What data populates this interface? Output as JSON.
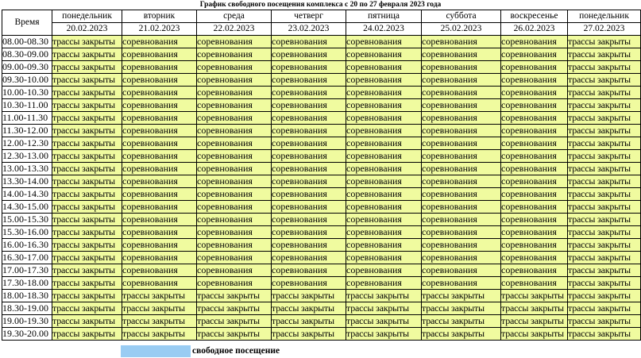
{
  "title": "График свободного посещения комплекса с 20 по 27 февраля 2023 года",
  "header": {
    "time_label": "Время",
    "days": [
      {
        "day": "понедельник",
        "date": "20.02.2023"
      },
      {
        "day": "вторник",
        "date": "21.02.2023"
      },
      {
        "day": "среда",
        "date": "22.02.2023"
      },
      {
        "day": "четверг",
        "date": "23.02.2023"
      },
      {
        "day": "пятница",
        "date": "24.02.2023"
      },
      {
        "day": "суббота",
        "date": "25.02.2023"
      },
      {
        "day": "воскресенье",
        "date": "26.02.2023"
      },
      {
        "day": "понедельник",
        "date": "27.02.2023"
      }
    ]
  },
  "rows": [
    {
      "time": "08.00-08.30",
      "cells": [
        "трассы закрыты",
        "соревнования",
        "соревнования",
        "соревнования",
        "соревнования",
        "соревнования",
        "соревнования",
        "трассы закрыты"
      ]
    },
    {
      "time": "08.30-09.00",
      "cells": [
        "трассы закрыты",
        "соревнования",
        "соревнования",
        "соревнования",
        "соревнования",
        "соревнования",
        "соревнования",
        "трассы закрыты"
      ]
    },
    {
      "time": "09.00-09.30",
      "cells": [
        "трассы закрыты",
        "соревнования",
        "соревнования",
        "соревнования",
        "соревнования",
        "соревнования",
        "соревнования",
        "трассы закрыты"
      ]
    },
    {
      "time": "09.30-10.00",
      "cells": [
        "трассы закрыты",
        "соревнования",
        "соревнования",
        "соревнования",
        "соревнования",
        "соревнования",
        "соревнования",
        "трассы закрыты"
      ]
    },
    {
      "time": "10.00-10.30",
      "cells": [
        "трассы закрыты",
        "соревнования",
        "соревнования",
        "соревнования",
        "соревнования",
        "соревнования",
        "соревнования",
        "трассы закрыты"
      ]
    },
    {
      "time": "10.30-11.00",
      "cells": [
        "трассы закрыты",
        "соревнования",
        "соревнования",
        "соревнования",
        "соревнования",
        "соревнования",
        "соревнования",
        "трассы закрыты"
      ]
    },
    {
      "time": "11.00-11.30",
      "cells": [
        "трассы закрыты",
        "соревнования",
        "соревнования",
        "соревнования",
        "соревнования",
        "соревнования",
        "соревнования",
        "трассы закрыты"
      ]
    },
    {
      "time": "11.30-12.00",
      "cells": [
        "трассы закрыты",
        "соревнования",
        "соревнования",
        "соревнования",
        "соревнования",
        "соревнования",
        "соревнования",
        "трассы закрыты"
      ]
    },
    {
      "time": "12.00-12.30",
      "cells": [
        "трассы закрыты",
        "соревнования",
        "соревнования",
        "соревнования",
        "соревнования",
        "соревнования",
        "соревнования",
        "трассы закрыты"
      ]
    },
    {
      "time": "12.30-13.00",
      "cells": [
        "трассы закрыты",
        "соревнования",
        "соревнования",
        "соревнования",
        "соревнования",
        "соревнования",
        "соревнования",
        "трассы закрыты"
      ]
    },
    {
      "time": "13.00-13.30",
      "cells": [
        "трассы закрыты",
        "соревнования",
        "соревнования",
        "соревнования",
        "соревнования",
        "соревнования",
        "соревнования",
        "трассы закрыты"
      ]
    },
    {
      "time": "13.30-14.00",
      "cells": [
        "трассы закрыты",
        "соревнования",
        "соревнования",
        "соревнования",
        "соревнования",
        "соревнования",
        "соревнования",
        "трассы закрыты"
      ]
    },
    {
      "time": "14.00-14.30",
      "cells": [
        "трассы закрыты",
        "соревнования",
        "соревнования",
        "соревнования",
        "соревнования",
        "соревнования",
        "соревнования",
        "трассы закрыты"
      ]
    },
    {
      "time": "14.30-15.00",
      "cells": [
        "трассы закрыты",
        "соревнования",
        "соревнования",
        "соревнования",
        "соревнования",
        "соревнования",
        "соревнования",
        "трассы закрыты"
      ]
    },
    {
      "time": "15.00-15.30",
      "cells": [
        "трассы закрыты",
        "соревнования",
        "соревнования",
        "соревнования",
        "соревнования",
        "соревнования",
        "соревнования",
        "трассы закрыты"
      ]
    },
    {
      "time": "15.30-16.00",
      "cells": [
        "трассы закрыты",
        "соревнования",
        "соревнования",
        "соревнования",
        "соревнования",
        "соревнования",
        "соревнования",
        "трассы закрыты"
      ]
    },
    {
      "time": "16.00-16.30",
      "cells": [
        "трассы закрыты",
        "соревнования",
        "соревнования",
        "соревнования",
        "соревнования",
        "соревнования",
        "соревнования",
        "трассы закрыты"
      ]
    },
    {
      "time": "16.30-17.00",
      "cells": [
        "трассы закрыты",
        "соревнования",
        "соревнования",
        "соревнования",
        "соревнования",
        "соревнования",
        "соревнования",
        "трассы закрыты"
      ]
    },
    {
      "time": "17.00-17.30",
      "cells": [
        "трассы закрыты",
        "соревнования",
        "соревнования",
        "соревнования",
        "соревнования",
        "соревнования",
        "соревнования",
        "трассы закрыты"
      ]
    },
    {
      "time": "17.30-18.00",
      "cells": [
        "трассы закрыты",
        "соревнования",
        "соревнования",
        "соревнования",
        "соревнования",
        "соревнования",
        "соревнования",
        "трассы закрыты"
      ]
    },
    {
      "time": "18.00-18.30",
      "cells": [
        "трассы закрыты",
        "трассы закрыты",
        "трассы закрыты",
        "трассы закрыты",
        "трассы закрыты",
        "трассы закрыты",
        "трассы закрыты",
        "трассы закрыты"
      ]
    },
    {
      "time": "18.30-19.00",
      "cells": [
        "трассы закрыты",
        "трассы закрыты",
        "трассы закрыты",
        "трассы закрыты",
        "трассы закрыты",
        "трассы закрыты",
        "трассы закрыты",
        "трассы закрыты"
      ]
    },
    {
      "time": "19.00-19.30",
      "cells": [
        "трассы закрыты",
        "трассы закрыты",
        "трассы закрыты",
        "трассы закрыты",
        "трассы закрыты",
        "трассы закрыты",
        "трассы закрыты",
        "трассы закрыты"
      ]
    },
    {
      "time": "19.30-20.00",
      "cells": [
        "трассы закрыты",
        "трассы закрыты",
        "трассы закрыты",
        "трассы закрыты",
        "трассы закрыты",
        "трассы закрыты",
        "трассы закрыты",
        "трассы закрыты"
      ]
    }
  ],
  "legend": {
    "label": "свободное посещение",
    "swatch_color": "#99ccf3"
  },
  "colors": {
    "cell_fill": "#f0fb9f",
    "grid": "#000000"
  }
}
